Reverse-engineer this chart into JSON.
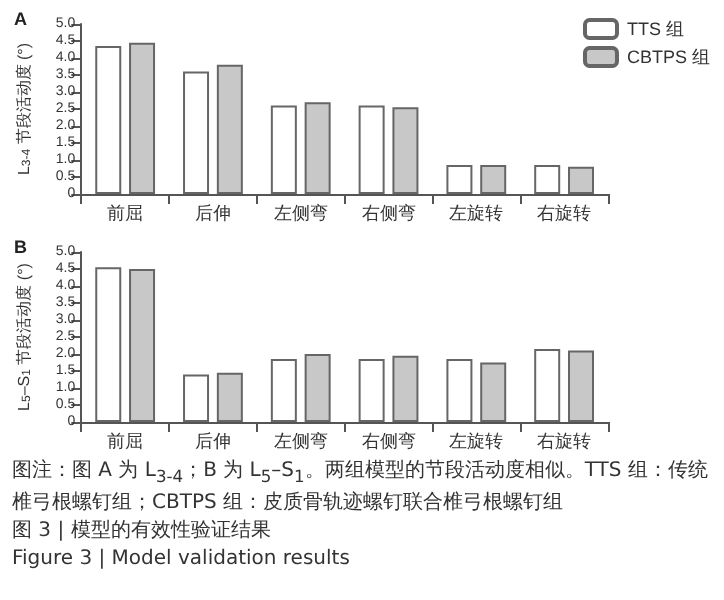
{
  "chart_data": [
    {
      "type": "bar",
      "title": "A",
      "ylabel": "L$_{3-4}$ 节段活动度 (°)",
      "categories": [
        "前屈",
        "后伸",
        "左侧弯",
        "右侧弯",
        "左旋转",
        "右旋转"
      ],
      "series": [
        {
          "name": "TTS 组",
          "color": "#ffffff",
          "values": [
            4.35,
            3.6,
            2.6,
            2.6,
            0.85,
            0.85
          ]
        },
        {
          "name": "CBTPS 组",
          "color": "#c8c8c8",
          "values": [
            4.45,
            3.8,
            2.7,
            2.55,
            0.85,
            0.8
          ]
        }
      ],
      "ylim": [
        0,
        5
      ],
      "yticks": [
        0,
        0.5,
        {
          "value": 1,
          "label": "1.0"
        },
        1.5,
        {
          "value": 2,
          "label": "2.0"
        },
        2.5,
        {
          "value": 3,
          "label": "3.0"
        },
        3.5,
        {
          "value": 4,
          "label": "4.0"
        },
        4.5,
        {
          "value": 5,
          "label": "5.0"
        }
      ],
      "grid": false,
      "legend": "top right"
    },
    {
      "type": "bar",
      "title": "B",
      "ylabel": "L$_{5}$–S$_{1}$ 节段活动度 (°)",
      "categories": [
        "前屈",
        "后伸",
        "左侧弯",
        "右侧弯",
        "左旋转",
        "右旋转"
      ],
      "series": [
        {
          "color": "#ffffff",
          "values": [
            4.55,
            1.4,
            1.85,
            1.85,
            1.85,
            2.15
          ]
        },
        {
          "color": "#c8c8c8",
          "values": [
            4.5,
            1.45,
            2.0,
            1.95,
            1.75,
            2.1
          ]
        }
      ],
      "ylim": [
        0,
        5
      ],
      "yticks": [
        0,
        0.5,
        {
          "value": 1,
          "label": "1.0"
        },
        1.5,
        {
          "value": 2,
          "label": "2.0"
        },
        2.5,
        {
          "value": 3,
          "label": "3.0"
        },
        3.5,
        {
          "value": 4,
          "label": "4.0"
        },
        4.5,
        {
          "value": 5,
          "label": "5.0"
        }
      ],
      "grid": false,
      "legend": false,
      "annotations": [
        "图注：图 A 为 L$_{3-4}$；B 为 L$_{5}$–S$_{1}$。两组模型的节段活动度相似。TTS 组：传统椎弓根螺钉组；CBTPS 组：皮质骨轨迹螺钉联合椎弓根螺钉组",
        "图 3 | 模型的有效性验证结果",
        "Figure 3 | Model validation results"
      ]
    }
  ]
}
